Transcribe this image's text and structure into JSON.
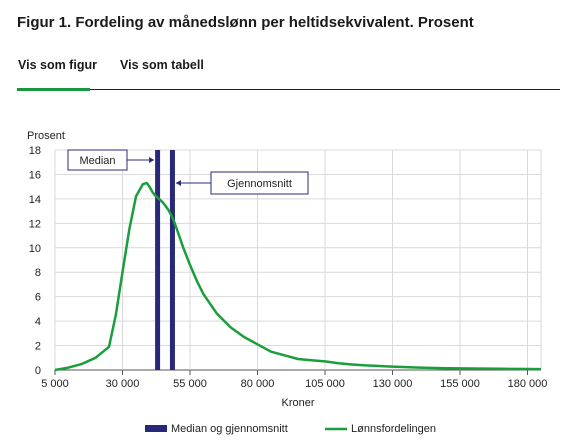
{
  "title": "Figur 1. Fordeling av månedslønn per heltidsekvivalent. Prosent",
  "tabs": [
    {
      "label": "Vis som figur",
      "active": true
    },
    {
      "label": "Vis som tabell",
      "active": false
    }
  ],
  "colors": {
    "line": "#1a9e3c",
    "bars": "#28287a",
    "tab_active": "#1a9641",
    "grid": "#d9d9d9"
  },
  "chart_data": {
    "type": "line",
    "ylabel": "Prosent",
    "xlabel": "Kroner",
    "xlim": [
      5000,
      185000
    ],
    "ylim": [
      0,
      18
    ],
    "x_ticks": [
      5000,
      30000,
      55000,
      80000,
      105000,
      130000,
      155000,
      180000
    ],
    "x_tick_labels": [
      "5 000",
      "30 000",
      "55 000",
      "80 000",
      "105 000",
      "130 000",
      "155 000",
      "180 000"
    ],
    "y_ticks": [
      0,
      2,
      4,
      6,
      8,
      10,
      12,
      14,
      16,
      18
    ],
    "y_tick_labels": [
      "0",
      "2",
      "4",
      "6",
      "8",
      "10",
      "12",
      "14",
      "16",
      "18"
    ],
    "grid": true,
    "legend_position": "bottom",
    "series": [
      {
        "name": "Lønnsfordelingen",
        "kind": "line",
        "x": [
          5000,
          10000,
          15000,
          20000,
          25000,
          27500,
          30000,
          32500,
          35000,
          37500,
          39000,
          40000,
          41000,
          42000,
          43000,
          44000,
          45000,
          46000,
          47000,
          48000,
          49000,
          50000,
          52500,
          55000,
          57500,
          60000,
          65000,
          70000,
          75000,
          80000,
          85000,
          90000,
          95000,
          100000,
          105000,
          110000,
          115000,
          120000,
          125000,
          130000,
          140000,
          150000,
          160000,
          170000,
          180000,
          185000
        ],
        "y": [
          0.0,
          0.2,
          0.5,
          1.0,
          1.9,
          4.5,
          8.0,
          11.5,
          14.2,
          15.2,
          15.3,
          15.0,
          14.6,
          14.3,
          14.1,
          13.9,
          13.7,
          13.4,
          13.1,
          12.7,
          12.2,
          11.6,
          10.0,
          8.6,
          7.3,
          6.2,
          4.6,
          3.5,
          2.7,
          2.1,
          1.5,
          1.2,
          0.9,
          0.8,
          0.7,
          0.55,
          0.45,
          0.38,
          0.33,
          0.28,
          0.2,
          0.15,
          0.12,
          0.1,
          0.08,
          0.07
        ]
      },
      {
        "name": "Median og gjennomsnitt",
        "kind": "bar",
        "x": [
          43000,
          48500
        ],
        "y": [
          18,
          18
        ]
      }
    ],
    "annotations": [
      {
        "text": "Median",
        "x": 43000
      },
      {
        "text": "Gjennomsnitt",
        "x": 48500
      }
    ]
  }
}
